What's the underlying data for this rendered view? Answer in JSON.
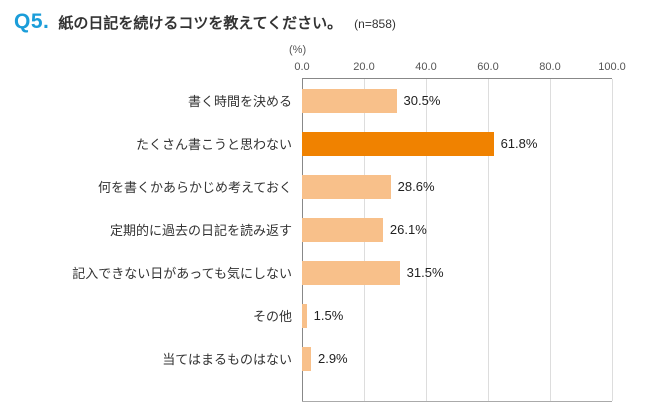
{
  "header": {
    "q_label": "Q5.",
    "title": "紙の日記を続けるコツを教えてください。",
    "sample": "(n=858)",
    "accent_color": "#1B9DD9"
  },
  "chart_data": {
    "type": "bar",
    "orientation": "horizontal",
    "unit_label": "(%)",
    "categories": [
      "書く時間を決める",
      "たくさん書こうと思わない",
      "何を書くかあらかじめ考えておく",
      "定期的に過去の日記を読み返す",
      "記入できない日があっても気にしない",
      "その他",
      "当てはまるものはない"
    ],
    "values": [
      30.5,
      61.8,
      28.6,
      26.1,
      31.5,
      1.5,
      2.9
    ],
    "value_labels": [
      "30.5%",
      "61.8%",
      "28.6%",
      "26.1%",
      "31.5%",
      "1.5%",
      "2.9%"
    ],
    "highlight_index": 1,
    "xlim": [
      0,
      100
    ],
    "ticks": [
      0,
      20,
      40,
      60,
      80,
      100
    ],
    "tick_labels": [
      "0.0",
      "20.0",
      "40.0",
      "60.0",
      "80.0",
      "100.0"
    ],
    "grid": true,
    "legend": "none",
    "colors": {
      "bar": "#F8C08A",
      "highlight": "#F08200",
      "grid": "#DDDDDD",
      "axis": "#888888"
    }
  }
}
